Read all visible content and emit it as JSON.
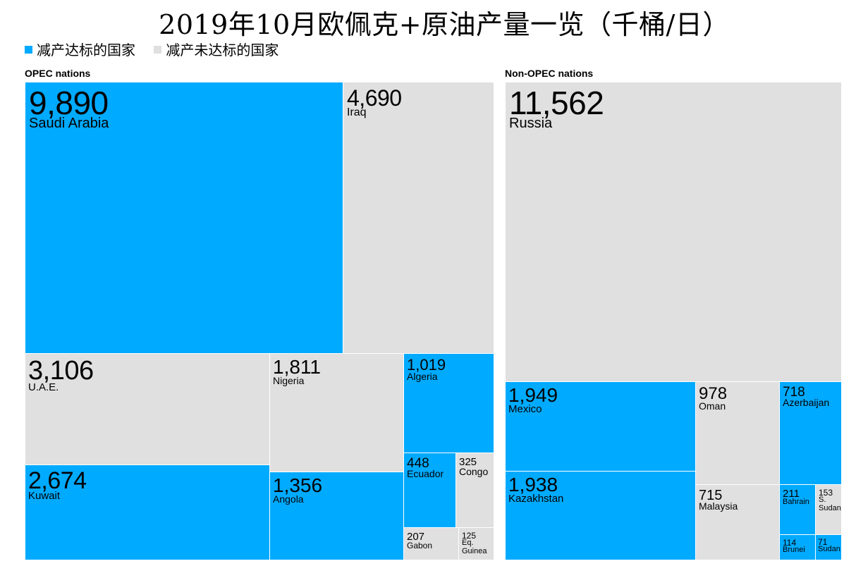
{
  "chart_data": {
    "type": "treemap",
    "title": "2019年10月欧佩克+原油产量一览（千桶/日）",
    "legend": [
      {
        "label": "减产达标的国家",
        "color": "#00aaff"
      },
      {
        "label": "减产未达标的国家",
        "color": "#e0e0e0"
      }
    ],
    "legend_placement": "top-left",
    "groups": [
      {
        "name": "OPEC nations",
        "items": [
          {
            "name": "Saudi Arabia",
            "value_label": "9,890",
            "value": 9890,
            "met_target": true
          },
          {
            "name": "Iraq",
            "value_label": "4,690",
            "value": 4690,
            "met_target": false
          },
          {
            "name": "U.A.E.",
            "value_label": "3,106",
            "value": 3106,
            "met_target": false
          },
          {
            "name": "Kuwait",
            "value_label": "2,674",
            "value": 2674,
            "met_target": true
          },
          {
            "name": "Nigeria",
            "value_label": "1,811",
            "value": 1811,
            "met_target": false
          },
          {
            "name": "Angola",
            "value_label": "1,356",
            "value": 1356,
            "met_target": true
          },
          {
            "name": "Algeria",
            "value_label": "1,019",
            "value": 1019,
            "met_target": true
          },
          {
            "name": "Ecuador",
            "value_label": "448",
            "value": 448,
            "met_target": true
          },
          {
            "name": "Congo",
            "value_label": "325",
            "value": 325,
            "met_target": false
          },
          {
            "name": "Gabon",
            "value_label": "207",
            "value": 207,
            "met_target": false
          },
          {
            "name": "Eq.\nGuinea",
            "value_label": "125",
            "value": 125,
            "met_target": false
          }
        ]
      },
      {
        "name": "Non-OPEC nations",
        "items": [
          {
            "name": "Russia",
            "value_label": "11,562",
            "value": 11562,
            "met_target": false
          },
          {
            "name": "Mexico",
            "value_label": "1,949",
            "value": 1949,
            "met_target": true
          },
          {
            "name": "Kazakhstan",
            "value_label": "1,938",
            "value": 1938,
            "met_target": true
          },
          {
            "name": "Oman",
            "value_label": "978",
            "value": 978,
            "met_target": false
          },
          {
            "name": "Malaysia",
            "value_label": "715",
            "value": 715,
            "met_target": false
          },
          {
            "name": "Azerbaijan",
            "value_label": "718",
            "value": 718,
            "met_target": true
          },
          {
            "name": "Bahrain",
            "value_label": "211",
            "value": 211,
            "met_target": true
          },
          {
            "name": "S.\nSudan",
            "value_label": "153",
            "value": 153,
            "met_target": false
          },
          {
            "name": "Brunei",
            "value_label": "114",
            "value": 114,
            "met_target": true
          },
          {
            "name": "Sudan",
            "value_label": "71",
            "value": 71,
            "met_target": true
          }
        ]
      }
    ]
  }
}
